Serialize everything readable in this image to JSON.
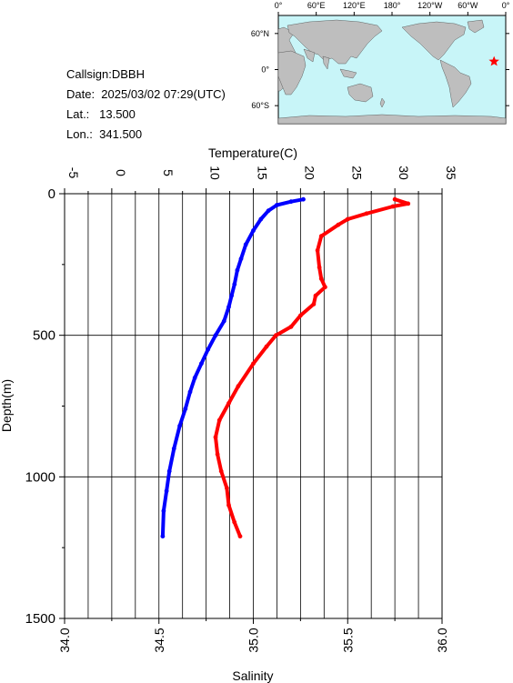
{
  "station": {
    "callsign": "Callsign:DBBH",
    "date": "Date:  2025/03/02 07:29(UTC)",
    "lat": "Lat.:   13.500",
    "lon": "Lon.:  341.500"
  },
  "map": {
    "top_ticks": [
      "0°",
      "60°E",
      "120°E",
      "180°",
      "120°W",
      "60°W",
      "0°"
    ],
    "left_ticks": [
      "60°N",
      "0°",
      "60°S"
    ],
    "ocean_color": "#c8f5f8",
    "land_color": "#bebebe",
    "marker_icon": "star-icon",
    "marker_color": "#ff0000",
    "marker_lat": 13.5,
    "marker_lon": 341.5
  },
  "chart_data": {
    "type": "line",
    "top_axis_label": "Temperature(C)",
    "bottom_axis_label": "Salinity",
    "y_axis_label": "Depth(m)",
    "temperature_ticks": [
      "-5",
      "0",
      "5",
      "10",
      "15",
      "20",
      "25",
      "30",
      "35"
    ],
    "salinity_ticks": [
      "34.0",
      "34.5",
      "35.0",
      "35.5",
      "36.0"
    ],
    "depth_ticks": [
      "0",
      "500",
      "1000",
      "1500"
    ],
    "temperature_range": [
      -5,
      35
    ],
    "salinity_range": [
      34.0,
      36.0
    ],
    "depth_range": [
      0,
      1500
    ],
    "series": [
      {
        "quantity": "temperature",
        "color": "#0000ff",
        "points": [
          [
            20.3,
            20
          ],
          [
            19.0,
            28
          ],
          [
            17.5,
            40
          ],
          [
            16.6,
            60
          ],
          [
            15.8,
            90
          ],
          [
            15.0,
            130
          ],
          [
            14.2,
            180
          ],
          [
            13.7,
            230
          ],
          [
            13.3,
            270
          ],
          [
            13.0,
            320
          ],
          [
            12.7,
            360
          ],
          [
            12.4,
            400
          ],
          [
            11.9,
            450
          ],
          [
            11.0,
            500
          ],
          [
            10.2,
            550
          ],
          [
            9.5,
            600
          ],
          [
            8.8,
            650
          ],
          [
            8.3,
            700
          ],
          [
            7.8,
            760
          ],
          [
            7.2,
            820
          ],
          [
            6.6,
            900
          ],
          [
            6.1,
            980
          ],
          [
            5.8,
            1050
          ],
          [
            5.5,
            1120
          ],
          [
            5.4,
            1210
          ]
        ]
      },
      {
        "quantity": "salinity",
        "color": "#ff0000",
        "points": [
          [
            35.75,
            20
          ],
          [
            35.82,
            35
          ],
          [
            35.74,
            45
          ],
          [
            35.6,
            70
          ],
          [
            35.5,
            90
          ],
          [
            35.45,
            110
          ],
          [
            35.36,
            150
          ],
          [
            35.34,
            200
          ],
          [
            35.35,
            260
          ],
          [
            35.36,
            300
          ],
          [
            35.38,
            330
          ],
          [
            35.33,
            360
          ],
          [
            35.32,
            390
          ],
          [
            35.25,
            430
          ],
          [
            35.2,
            470
          ],
          [
            35.12,
            500
          ],
          [
            35.07,
            540
          ],
          [
            35.0,
            600
          ],
          [
            34.92,
            680
          ],
          [
            34.87,
            740
          ],
          [
            34.82,
            800
          ],
          [
            34.8,
            860
          ],
          [
            34.81,
            920
          ],
          [
            34.83,
            980
          ],
          [
            34.86,
            1040
          ],
          [
            34.87,
            1100
          ],
          [
            34.9,
            1160
          ],
          [
            34.93,
            1210
          ]
        ]
      }
    ]
  }
}
